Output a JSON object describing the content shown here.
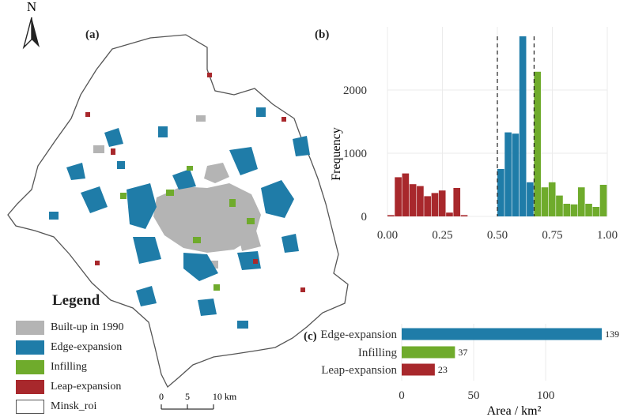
{
  "panels": {
    "a": "(a)",
    "b": "(b)",
    "c": "(c)"
  },
  "north": "N",
  "legend": {
    "title": "Legend",
    "items": [
      {
        "label": "Built-up in 1990",
        "color": "#b4b4b4"
      },
      {
        "label": "Edge-expansion",
        "color": "#1f7ca8"
      },
      {
        "label": "Infilling",
        "color": "#6fab2c"
      },
      {
        "label": "Leap-expansion",
        "color": "#a8282c"
      },
      {
        "label": "Minsk_roi",
        "color": "#ffffff"
      }
    ]
  },
  "scalebar": {
    "labels": [
      "0",
      "5",
      "10 km"
    ]
  },
  "chart_data": [
    {
      "type": "bar",
      "panel": "(b)",
      "ylabel": "Frequency",
      "xlim": [
        0,
        1
      ],
      "ylim": [
        0,
        3000
      ],
      "xticks": [
        "0.00",
        "0.25",
        "0.50",
        "0.75",
        "1.00"
      ],
      "yticks": [
        "0",
        "1000",
        "2000"
      ],
      "thresholds": [
        0.5,
        0.667
      ],
      "bin_width": 0.0333,
      "series": [
        {
          "name": "Leap-expansion",
          "color": "#a8282c",
          "x": [
            0.0167,
            0.05,
            0.0833,
            0.1167,
            0.15,
            0.1833,
            0.2167,
            0.25,
            0.2833,
            0.3167,
            0.35
          ],
          "values": [
            20,
            620,
            680,
            510,
            480,
            320,
            370,
            410,
            60,
            450,
            20
          ]
        },
        {
          "name": "Edge-expansion",
          "color": "#1f7ca8",
          "x": [
            0.5167,
            0.55,
            0.5833,
            0.6167,
            0.65
          ],
          "values": [
            750,
            1330,
            1310,
            2850,
            540
          ]
        },
        {
          "name": "Infilling",
          "color": "#6fab2c",
          "x": [
            0.6833,
            0.7167,
            0.75,
            0.7833,
            0.8167,
            0.85,
            0.8833,
            0.9167,
            0.95,
            0.9833
          ],
          "values": [
            2290,
            460,
            540,
            330,
            200,
            190,
            460,
            200,
            150,
            500
          ]
        }
      ]
    },
    {
      "type": "bar",
      "orientation": "horizontal",
      "panel": "(c)",
      "xlabel": "Area / km²",
      "xlim": [
        0,
        145
      ],
      "xticks": [
        "0",
        "50",
        "100"
      ],
      "categories": [
        "Edge-expansion",
        "Infilling",
        "Leap-expansion"
      ],
      "values": [
        139,
        37,
        23
      ],
      "colors": [
        "#1f7ca8",
        "#6fab2c",
        "#a8282c"
      ]
    }
  ]
}
